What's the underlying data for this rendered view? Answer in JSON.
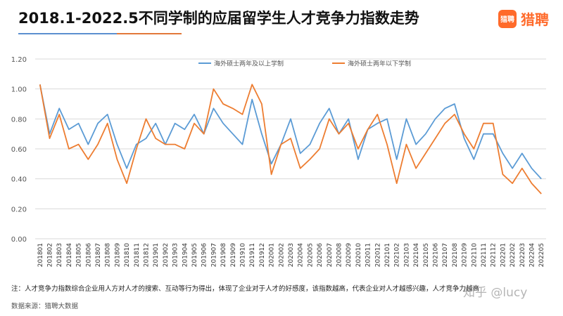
{
  "header": {
    "title": "2018.1-2022.5不同学制的应届留学生人才竞争力指数走势",
    "logo_icon_text": "猎聘",
    "logo_text": "猎聘"
  },
  "footer": {
    "note": "注：人才竞争力指数综合企业用人方对人才的搜索、互动等行为得出，体现了企业对于人才的好感度，该指数越高，代表企业对人才越感兴趣，人才竞争力越高",
    "source": "数据来源：猎聘大数据",
    "watermark": "知乎 @lucy"
  },
  "chart_data": {
    "type": "line",
    "title": "2018.1-2022.5不同学制的应届留学生人才竞争力指数走势",
    "xlabel": "",
    "ylabel": "",
    "ylim": [
      0,
      1.2
    ],
    "yticks": [
      "0.00",
      "0.20",
      "0.40",
      "0.60",
      "0.80",
      "1.00",
      "1.20"
    ],
    "legend_position": "top",
    "grid": "horizontal",
    "categories": [
      "201801",
      "201802",
      "201803",
      "201804",
      "201805",
      "201806",
      "201807",
      "201808",
      "201809",
      "201810",
      "201811",
      "201812",
      "201901",
      "201902",
      "201903",
      "201904",
      "201905",
      "201906",
      "201907",
      "201908",
      "201909",
      "201910",
      "201911",
      "201912",
      "202001",
      "202002",
      "202003",
      "202004",
      "202005",
      "202006",
      "202007",
      "202008",
      "202009",
      "202010",
      "202011",
      "202012",
      "202101",
      "202102",
      "202103",
      "202104",
      "202105",
      "202106",
      "202107",
      "202108",
      "202109",
      "202110",
      "202111",
      "202112",
      "202201",
      "202202",
      "202203",
      "202204",
      "202205"
    ],
    "series": [
      {
        "name": "海外硕士两年及以上学制",
        "color": "#5b9bd5",
        "values": [
          1.03,
          0.7,
          0.87,
          0.73,
          0.77,
          0.63,
          0.77,
          0.83,
          0.63,
          0.47,
          0.63,
          0.67,
          0.77,
          0.63,
          0.77,
          0.73,
          0.83,
          0.7,
          0.87,
          0.77,
          0.7,
          0.63,
          0.93,
          0.7,
          0.5,
          0.63,
          0.8,
          0.57,
          0.63,
          0.77,
          0.87,
          0.7,
          0.8,
          0.53,
          0.73,
          0.77,
          0.8,
          0.53,
          0.8,
          0.63,
          0.7,
          0.8,
          0.87,
          0.9,
          0.67,
          0.53,
          0.7,
          0.7,
          0.57,
          0.47,
          0.57,
          0.47,
          0.4
        ]
      },
      {
        "name": "海外硕士两年以下学制",
        "color": "#ed7d31",
        "values": [
          1.03,
          0.67,
          0.83,
          0.6,
          0.63,
          0.53,
          0.63,
          0.77,
          0.53,
          0.37,
          0.6,
          0.8,
          0.67,
          0.63,
          0.63,
          0.6,
          0.77,
          0.7,
          1.0,
          0.9,
          0.87,
          0.83,
          1.03,
          0.9,
          0.43,
          0.63,
          0.67,
          0.47,
          0.53,
          0.6,
          0.8,
          0.7,
          0.77,
          0.6,
          0.73,
          0.83,
          0.63,
          0.37,
          0.63,
          0.47,
          0.57,
          0.67,
          0.77,
          0.83,
          0.7,
          0.6,
          0.77,
          0.77,
          0.43,
          0.37,
          0.47,
          0.37,
          0.3
        ]
      }
    ]
  }
}
